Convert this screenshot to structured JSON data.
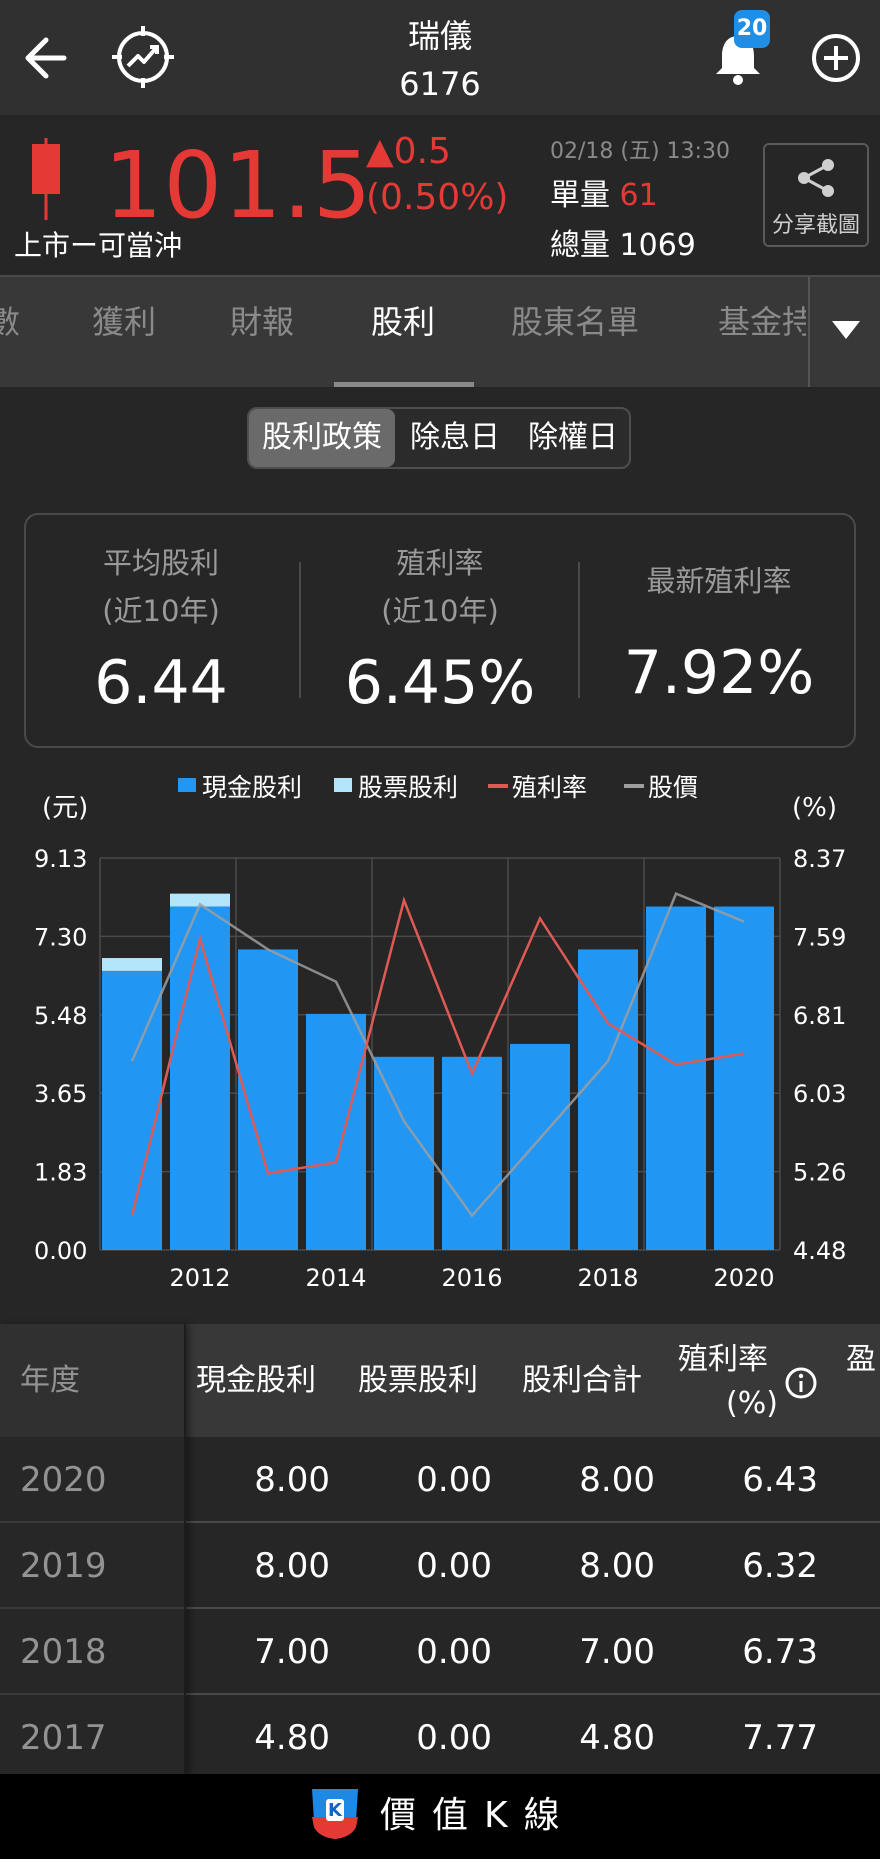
{
  "header": {
    "title": "瑞儀",
    "code": "6176",
    "notification_count": "20"
  },
  "quote": {
    "price": "101.5",
    "change": "▲0.5",
    "change_pct": "(0.50%)",
    "market": "上市ー可當沖",
    "datetime": "02/18 (五) 13:30",
    "unit_volume_label": "單量",
    "unit_volume": "61",
    "total_volume_label": "總量",
    "total_volume": "1069",
    "share_label": "分享截圖"
  },
  "tabs": [
    {
      "label": "數"
    },
    {
      "label": "獲利"
    },
    {
      "label": "財報"
    },
    {
      "label": "股利"
    },
    {
      "label": "股東名單"
    },
    {
      "label": "基金持"
    }
  ],
  "segments": [
    {
      "label": "股利政策"
    },
    {
      "label": "除息日"
    },
    {
      "label": "除權日"
    }
  ],
  "stats": [
    {
      "label1": "平均股利",
      "label2": "(近10年)",
      "value": "6.44"
    },
    {
      "label1": "殖利率",
      "label2": "(近10年)",
      "value": "6.45%"
    },
    {
      "label1": "最新殖利率",
      "label2": "",
      "value": "7.92%"
    }
  ],
  "chart_data": {
    "type": "bar",
    "legend": [
      {
        "name": "現金股利",
        "color": "#2196f3"
      },
      {
        "name": "股票股利",
        "color": "#b3e5fc"
      },
      {
        "name": "殖利率",
        "color": "#e05a55"
      },
      {
        "name": "股價",
        "color": "#9e9e9e"
      }
    ],
    "left_unit": "(元)",
    "right_unit": "(%)",
    "left_ticks": [
      "9.13",
      "7.30",
      "5.48",
      "3.65",
      "1.83",
      "0.00"
    ],
    "right_ticks": [
      "8.37",
      "7.59",
      "6.81",
      "6.03",
      "5.26",
      "4.48"
    ],
    "ylim_left": [
      0,
      9.13
    ],
    "ylim_right": [
      4.48,
      8.37
    ],
    "x_ticks": [
      "2012",
      "2014",
      "2016",
      "2018",
      "2020"
    ],
    "x": [
      2011,
      2012,
      2013,
      2014,
      2015,
      2016,
      2017,
      2018,
      2019,
      2020
    ],
    "series": [
      {
        "name": "現金股利",
        "values": [
          6.5,
          8.0,
          7.0,
          5.5,
          4.5,
          4.5,
          4.8,
          7.0,
          8.0,
          8.0
        ]
      },
      {
        "name": "股票股利",
        "values": [
          0.3,
          0.3,
          0,
          0,
          0,
          0,
          0,
          0,
          0,
          0
        ]
      },
      {
        "name": "殖利率",
        "values": [
          4.82,
          7.57,
          5.24,
          5.35,
          7.95,
          6.23,
          7.77,
          6.73,
          6.32,
          6.43
        ]
      },
      {
        "name": "股價",
        "values": [
          4.4,
          8.05,
          7.0,
          6.25,
          3.0,
          0.8,
          2.6,
          4.4,
          8.3,
          7.65
        ]
      }
    ]
  },
  "table": {
    "headers": [
      "年度",
      "現金股利",
      "股票股利",
      "股利合計",
      "殖利率",
      "(%)",
      "盈"
    ],
    "rows": [
      {
        "year": "2020",
        "cash": "8.00",
        "stock": "0.00",
        "total": "8.00",
        "yield": "6.43"
      },
      {
        "year": "2019",
        "cash": "8.00",
        "stock": "0.00",
        "total": "8.00",
        "yield": "6.32"
      },
      {
        "year": "2018",
        "cash": "7.00",
        "stock": "0.00",
        "total": "7.00",
        "yield": "6.73"
      },
      {
        "year": "2017",
        "cash": "4.80",
        "stock": "0.00",
        "total": "4.80",
        "yield": "7.77"
      }
    ]
  },
  "footer": {
    "brand": "價值K線",
    "logo_letter": "K"
  }
}
